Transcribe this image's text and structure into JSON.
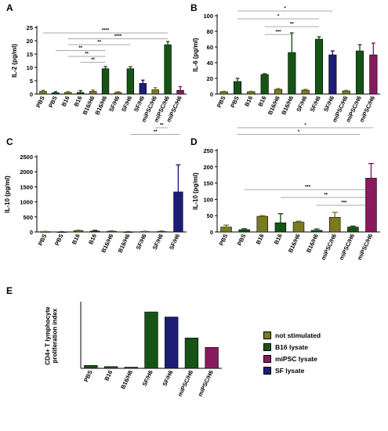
{
  "colors": {
    "not stimulated": "#7a7a1f",
    "B16 lysate": "#155415",
    "miPSC lysate": "#8a1a5e",
    "SF lysate": "#1d1d75"
  },
  "legend": [
    {
      "label": "not stimulated",
      "group": "not stimulated"
    },
    {
      "label": "B16 lysate",
      "group": "B16 lysate"
    },
    {
      "label": "miPSC lysate",
      "group": "miPSC lysate"
    },
    {
      "label": "SF lysate",
      "group": "SF lysate"
    }
  ],
  "chart_data": [
    {
      "panel": "A",
      "type": "bar",
      "ylabel": "IL-2 (pg/ml)",
      "ylim": [
        0,
        25
      ],
      "yticks": [
        0,
        5,
        10,
        15,
        20,
        25
      ],
      "categories": [
        "PBS",
        "PBS",
        "B16",
        "B16",
        "B16/H6",
        "B16/H6",
        "SF/H6",
        "SF/H6",
        "SF/H6",
        "miPSC/H6",
        "miPSC/H6",
        "miPSC/H6"
      ],
      "values": [
        1.0,
        0.5,
        0.6,
        0.6,
        1.0,
        9.5,
        0.6,
        9.5,
        4.0,
        1.6,
        18.5,
        1.4
      ],
      "errors": [
        0.4,
        0.4,
        0.3,
        0.7,
        0.5,
        0.8,
        0.3,
        0.8,
        1.2,
        0.8,
        1.2,
        1.4
      ],
      "groups": [
        "not stimulated",
        "B16 lysate",
        "not stimulated",
        "B16 lysate",
        "not stimulated",
        "B16 lysate",
        "not stimulated",
        "B16 lysate",
        "SF lysate",
        "not stimulated",
        "B16 lysate",
        "miPSC lysate"
      ],
      "sig": [
        {
          "from": 0,
          "to": 10,
          "text": "****",
          "row": 7
        },
        {
          "from": 2,
          "to": 10,
          "text": "****",
          "row": 6
        },
        {
          "from": 2,
          "to": 7,
          "text": "**",
          "row": 5
        },
        {
          "from": 1,
          "to": 5,
          "text": "**",
          "row": 4
        },
        {
          "from": 2,
          "to": 5,
          "text": "**",
          "row": 3
        },
        {
          "from": 3,
          "to": 5,
          "text": "**",
          "row": 2
        }
      ],
      "sig_below": [
        {
          "from": 9,
          "to": 10,
          "text": "**",
          "row": 1
        },
        {
          "from": 7,
          "to": 11,
          "text": "**",
          "row": 2
        }
      ]
    },
    {
      "panel": "B",
      "type": "bar",
      "ylabel": "IL-6 (pg/ml)",
      "ylim": [
        0,
        100
      ],
      "yticks": [
        0,
        20,
        40,
        60,
        80,
        100
      ],
      "categories": [
        "PBS",
        "PBS",
        "B16",
        "B16",
        "B16/H6",
        "B16/H6",
        "SF/H6",
        "SF/H6",
        "SF/H6",
        "miPSC/H6",
        "miPSC/H6",
        "miPSC/H6"
      ],
      "values": [
        3,
        16,
        3,
        25,
        6,
        53,
        5,
        70,
        50,
        4,
        55,
        50
      ],
      "errors": [
        0.5,
        4,
        0.5,
        1,
        1,
        25,
        1,
        3,
        5,
        0.8,
        8,
        15
      ],
      "groups": [
        "not stimulated",
        "B16 lysate",
        "not stimulated",
        "B16 lysate",
        "not stimulated",
        "B16 lysate",
        "not stimulated",
        "B16 lysate",
        "SF lysate",
        "not stimulated",
        "B16 lysate",
        "miPSC lysate"
      ],
      "sig": [
        {
          "from": 1,
          "to": 8,
          "text": "*",
          "row": 5
        },
        {
          "from": 1,
          "to": 7,
          "text": "*",
          "row": 4
        },
        {
          "from": 3,
          "to": 7,
          "text": "**",
          "row": 3
        },
        {
          "from": 3,
          "to": 5,
          "text": "***",
          "row": 2
        }
      ],
      "sig_below": [
        {
          "from": 1,
          "to": 11,
          "text": "*",
          "row": 1
        },
        {
          "from": 1,
          "to": 10,
          "text": "*",
          "row": 2
        }
      ]
    },
    {
      "panel": "C",
      "type": "bar",
      "ylabel": "IL-10 (pg/ml)",
      "ylim": [
        0,
        2500
      ],
      "yticks": [
        0,
        500,
        1000,
        1500,
        2000,
        2500
      ],
      "categories": [
        "PBS",
        "PBS",
        "B16",
        "B16",
        "B16/H6",
        "B16/H6",
        "SF/H6",
        "SF/H6",
        "SF/H6"
      ],
      "values": [
        10,
        5,
        45,
        30,
        25,
        5,
        15,
        15,
        1330
      ],
      "errors": [
        10,
        5,
        15,
        25,
        15,
        5,
        10,
        10,
        900
      ],
      "groups": [
        "not stimulated",
        "B16 lysate",
        "not stimulated",
        "B16 lysate",
        "not stimulated",
        "B16 lysate",
        "not stimulated",
        "B16 lysate",
        "SF lysate"
      ],
      "sig": [],
      "sig_below": []
    },
    {
      "panel": "D",
      "type": "bar",
      "ylabel": "IL-10 (pg/ml)",
      "ylim": [
        0,
        250
      ],
      "yticks": [
        0,
        50,
        100,
        150,
        200,
        250
      ],
      "categories": [
        "PBS",
        "PBS",
        "B16",
        "B16",
        "B16/H6",
        "B16/H6",
        "miPSC/H6",
        "miPSC/H6",
        "miPSC/H6"
      ],
      "values": [
        15,
        7,
        48,
        28,
        30,
        5,
        45,
        15,
        165
      ],
      "errors": [
        6,
        3,
        2,
        28,
        3,
        4,
        15,
        3,
        45
      ],
      "groups": [
        "not stimulated",
        "B16 lysate",
        "not stimulated",
        "B16 lysate",
        "not stimulated",
        "B16 lysate",
        "not stimulated",
        "B16 lysate",
        "miPSC lysate"
      ],
      "sig": [
        {
          "from": 1,
          "to": 8,
          "text": "***",
          "row": 3
        },
        {
          "from": 3,
          "to": 8,
          "text": "**",
          "row": 2
        },
        {
          "from": 5,
          "to": 8,
          "text": "***",
          "row": 1
        }
      ],
      "sig_below": []
    },
    {
      "panel": "E",
      "type": "bar",
      "ylabel": "CD4+ T lymphocyte\nproliferation index",
      "ylim": [
        0,
        4.5
      ],
      "categories": [
        "PBS",
        "B16",
        "B16/H6",
        "SF/H6",
        "SF/H6",
        "miPSC/H6",
        "miPSC/H6"
      ],
      "values": [
        0.2,
        0.12,
        0.08,
        3.9,
        3.55,
        2.1,
        1.45
      ],
      "groups": [
        "B16 lysate",
        "B16 lysate",
        "B16 lysate",
        "B16 lysate",
        "SF lysate",
        "B16 lysate",
        "miPSC lysate"
      ],
      "sig": [],
      "sig_below": []
    }
  ]
}
